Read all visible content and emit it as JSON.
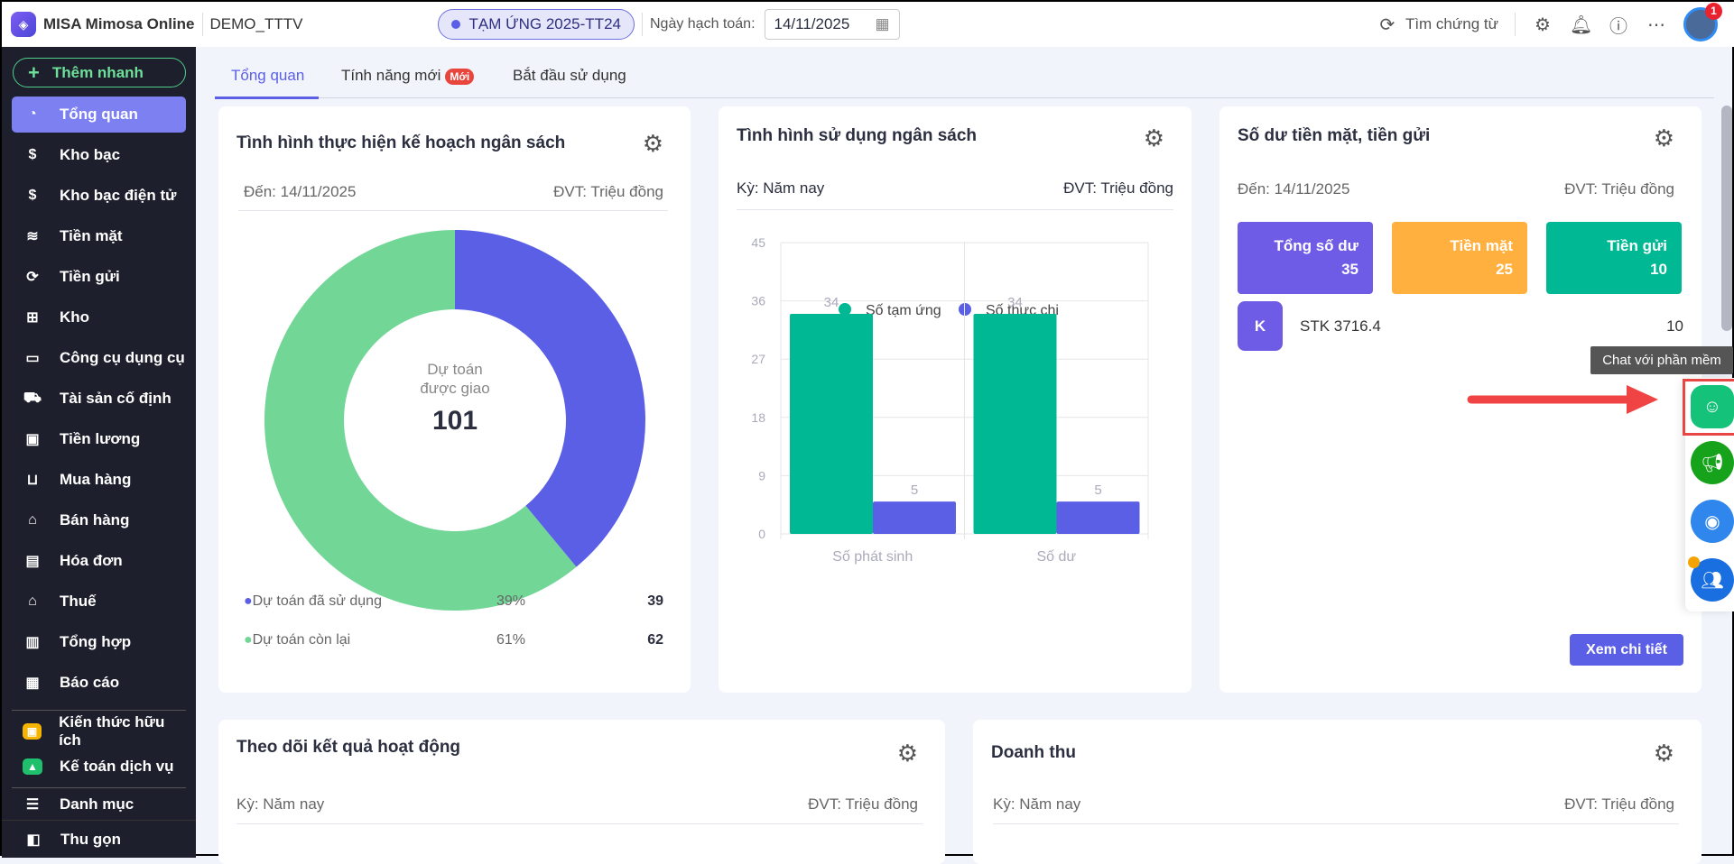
{
  "header": {
    "app_name": "MISA Mimosa Online",
    "database": "DEMO_TTTV",
    "period_pill": "TẠM ỨNG 2025-TT24",
    "posting_date_label": "Ngày hạch toán:",
    "posting_date": "14/11/2025",
    "search_label": "Tìm chứng từ",
    "notification_count": "1"
  },
  "sidebar": {
    "quick_add": "Thêm nhanh",
    "items": [
      {
        "label": "Tổng quan",
        "icon": "pie-chart-icon",
        "glyph": "◔"
      },
      {
        "label": "Kho bạc",
        "icon": "treasury-icon",
        "glyph": "$"
      },
      {
        "label": "Kho bạc điện tử",
        "icon": "e-treasury-icon",
        "glyph": "$"
      },
      {
        "label": "Tiền mặt",
        "icon": "cash-icon",
        "glyph": "≋"
      },
      {
        "label": "Tiền gửi",
        "icon": "deposit-icon",
        "glyph": "⟳"
      },
      {
        "label": "Kho",
        "icon": "warehouse-icon",
        "glyph": "⊞"
      },
      {
        "label": "Công cụ dụng cụ",
        "icon": "tools-icon",
        "glyph": "▭"
      },
      {
        "label": "Tài sản cố định",
        "icon": "truck-icon",
        "glyph": "⛟"
      },
      {
        "label": "Tiền lương",
        "icon": "salary-icon",
        "glyph": "▣"
      },
      {
        "label": "Mua hàng",
        "icon": "cart-icon",
        "glyph": "⊔"
      },
      {
        "label": "Bán hàng",
        "icon": "store-icon",
        "glyph": "⌂"
      },
      {
        "label": "Hóa đơn",
        "icon": "invoice-icon",
        "glyph": "▤"
      },
      {
        "label": "Thuế",
        "icon": "bank-icon",
        "glyph": "⌂"
      },
      {
        "label": "Tổng hợp",
        "icon": "summary-icon",
        "glyph": "▥"
      },
      {
        "label": "Báo cáo",
        "icon": "report-icon",
        "glyph": "▦"
      }
    ],
    "extra": [
      {
        "label": "Kiến thức hữu ích",
        "icon": "gift-icon",
        "color": "#f5b400"
      },
      {
        "label": "Kế toán dịch vụ",
        "icon": "service-icon",
        "color": "#1fbf6b"
      }
    ],
    "catalog": "Danh mục",
    "collapse": "Thu gọn"
  },
  "tabs": [
    {
      "label": "Tổng quan"
    },
    {
      "label": "Tính năng mới",
      "badge": "Mới"
    },
    {
      "label": "Bắt đầu sử dụng"
    }
  ],
  "budget_plan": {
    "title": "Tình hình thực hiện kế hoạch ngân sách",
    "date": "Đến: 14/11/2025",
    "unit": "ĐVT: Triệu đồng",
    "center_label_1": "Dự toán",
    "center_label_2": "được giao",
    "center_value": "101",
    "legend": [
      {
        "name": "Dự toán đã sử dụng",
        "percent": "39%",
        "value": "39",
        "color": "#5b5fe6"
      },
      {
        "name": "Dự toán còn lại",
        "percent": "61%",
        "value": "62",
        "color": "#72d697"
      }
    ]
  },
  "chart_data": {
    "type": "bar",
    "title": "Tình hình sử dụng ngân sách",
    "period": "Kỳ: Năm nay",
    "unit": "ĐVT: Triệu đồng",
    "categories": [
      "Số phát sinh",
      "Số dư"
    ],
    "series": [
      {
        "name": "Số tạm ứng",
        "values": [
          34,
          34
        ],
        "color": "#00b894"
      },
      {
        "name": "Số thực chi",
        "values": [
          5,
          5
        ],
        "color": "#5b5fe6"
      }
    ],
    "ylim": [
      0,
      45
    ],
    "yticks": [
      "0",
      "9",
      "18",
      "27",
      "36",
      "45"
    ],
    "grid": true,
    "legend": "top"
  },
  "balance": {
    "title": "Số dư tiền mặt, tiền gửi",
    "date": "Đến: 14/11/2025",
    "unit": "ĐVT: Triệu đồng",
    "boxes": [
      {
        "label": "Tổng số dư",
        "value": "35",
        "color": "#6e5ce6"
      },
      {
        "label": "Tiền mặt",
        "value": "25",
        "color": "#ffb03f"
      },
      {
        "label": "Tiền gửi",
        "value": "10",
        "color": "#00b894"
      }
    ],
    "accounts": [
      {
        "initial": "K",
        "name": "STK 3716.4",
        "value": "10"
      }
    ],
    "detail_button": "Xem chi tiết"
  },
  "activity": {
    "title": "Theo dõi kết quả hoạt động",
    "period": "Kỳ: Năm nay",
    "unit": "ĐVT: Triệu đồng"
  },
  "revenue": {
    "title": "Doanh thu",
    "period": "Kỳ: Năm nay",
    "unit": "ĐVT: Triệu đồng"
  },
  "chat_widget": {
    "tooltip": "Chat với phần mềm"
  }
}
